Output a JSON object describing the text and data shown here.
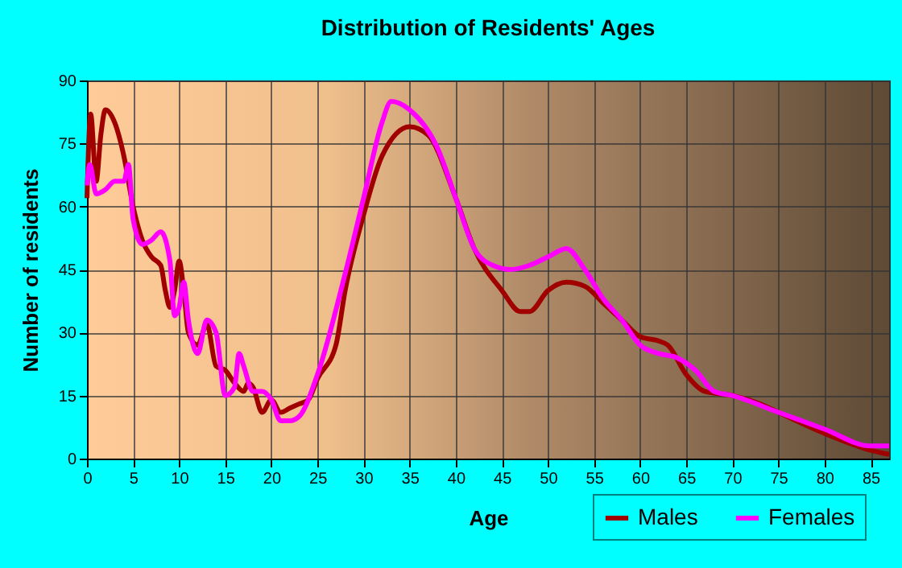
{
  "chart_data": {
    "type": "line",
    "title": "Distribution of Residents' Ages",
    "xlabel": "Age",
    "ylabel": "Number of residents",
    "xlim": [
      0,
      87
    ],
    "ylim": [
      0,
      90
    ],
    "xticks": [
      0,
      5,
      10,
      15,
      20,
      25,
      30,
      35,
      40,
      45,
      50,
      55,
      60,
      65,
      70,
      75,
      80,
      85
    ],
    "yticks": [
      0,
      15,
      30,
      45,
      60,
      75,
      90
    ],
    "grid": true,
    "legend": "bottom right",
    "marker": "none",
    "line_style": "solid",
    "series": [
      {
        "name": "Males",
        "color": "#a00000",
        "x": [
          0,
          0.4,
          1,
          1.5,
          2,
          3,
          4,
          5,
          6,
          7,
          8,
          8.5,
          9,
          9.5,
          10,
          10.5,
          11,
          12,
          13,
          14,
          15,
          16,
          17,
          17.5,
          18,
          19,
          20,
          21,
          22,
          23,
          24,
          25,
          27,
          28,
          30,
          32,
          35,
          37,
          40,
          42,
          45,
          47,
          48,
          50,
          52,
          54,
          56,
          58,
          60,
          62,
          63,
          65,
          67,
          70,
          73,
          75,
          80,
          85,
          87
        ],
        "values": [
          62,
          82,
          66,
          77,
          83,
          80,
          72,
          60,
          52,
          48,
          46,
          40,
          36,
          40,
          47,
          40,
          30,
          27,
          32,
          22,
          21,
          18,
          16,
          18,
          17,
          11,
          14,
          11,
          12,
          13,
          14,
          19,
          27,
          40,
          58,
          72,
          79,
          77,
          62,
          50,
          40,
          35,
          35,
          40,
          42,
          41,
          37,
          33,
          29,
          28,
          27,
          20,
          16,
          15,
          13,
          11,
          6,
          2,
          1
        ]
      },
      {
        "name": "Females",
        "color": "#ff00ff",
        "x": [
          0,
          0.3,
          1,
          2,
          3,
          4,
          4.5,
          5,
          6,
          7,
          8,
          9,
          9.5,
          10,
          10.5,
          11,
          12,
          13,
          14,
          15,
          16,
          16.5,
          17,
          18,
          19,
          20,
          21,
          22,
          23,
          25,
          28,
          30,
          32,
          33,
          35,
          38,
          40,
          42,
          44,
          46,
          48,
          50,
          52,
          54,
          56,
          58,
          60,
          62,
          64,
          66,
          68,
          70,
          75,
          80,
          85,
          87
        ],
        "values": [
          65,
          70,
          63,
          64,
          66,
          66,
          70,
          57,
          51,
          52,
          54,
          47,
          34,
          36,
          42,
          33,
          25,
          33,
          30,
          15,
          17,
          25,
          22,
          16,
          16,
          14,
          9,
          9,
          10,
          20,
          44,
          62,
          80,
          85,
          83,
          74,
          62,
          50,
          46,
          45,
          46,
          48,
          50,
          45,
          38,
          33,
          27,
          25,
          24,
          21,
          16,
          15,
          11,
          7,
          3,
          3
        ]
      }
    ]
  }
}
